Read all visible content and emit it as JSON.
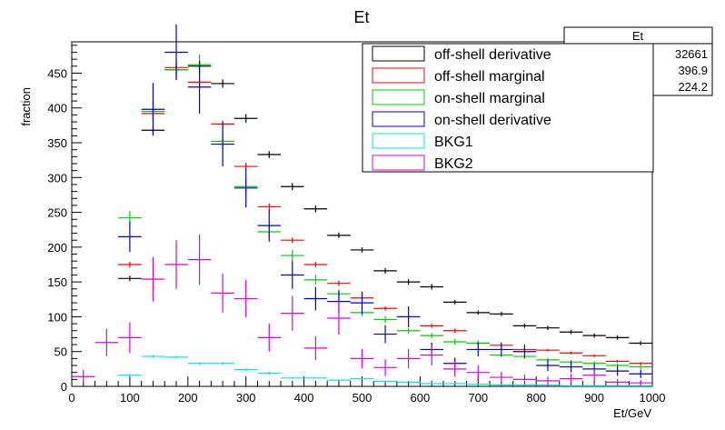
{
  "chart_data": {
    "type": "scatter",
    "title": "Et",
    "xlabel": "Et/GeV",
    "ylabel": "fraction",
    "xlim": [
      0,
      1000
    ],
    "ylim": [
      0,
      495
    ],
    "x_ticks": [
      0,
      100,
      200,
      300,
      400,
      500,
      600,
      700,
      800,
      900,
      1000
    ],
    "y_ticks": [
      0,
      50,
      100,
      150,
      200,
      250,
      300,
      350,
      400,
      450
    ],
    "bin_width": 40,
    "legend_position": "top-right",
    "stats_box": {
      "title": "Et",
      "values": [
        "32661",
        "396.9",
        "224.2"
      ]
    },
    "series": [
      {
        "name": "off-shell derivative",
        "color": "#000000",
        "x": [
          100,
          140,
          180,
          220,
          260,
          300,
          340,
          380,
          420,
          460,
          500,
          540,
          580,
          620,
          660,
          700,
          740,
          780,
          820,
          860,
          900,
          940,
          980
        ],
        "values": [
          155,
          368,
          455,
          460,
          435,
          385,
          333,
          287,
          255,
          217,
          196,
          166,
          150,
          143,
          121,
          106,
          104,
          87,
          84,
          78,
          73,
          70,
          62
        ],
        "errors": [
          4,
          6,
          7,
          7,
          6,
          6,
          5,
          5,
          5,
          4,
          4,
          4,
          4,
          4,
          3,
          3,
          3,
          3,
          3,
          3,
          3,
          3,
          3
        ]
      },
      {
        "name": "off-shell marginal",
        "color": "#ff0000",
        "x": [
          100,
          140,
          180,
          220,
          260,
          300,
          340,
          380,
          420,
          460,
          500,
          540,
          580,
          620,
          660,
          700,
          740,
          780,
          820,
          860,
          900,
          940,
          980
        ],
        "values": [
          175,
          392,
          458,
          437,
          377,
          316,
          258,
          210,
          175,
          148,
          127,
          112,
          100,
          87,
          80,
          62,
          59,
          53,
          52,
          48,
          44,
          36,
          33
        ],
        "errors": [
          4,
          5,
          6,
          6,
          5,
          5,
          5,
          4,
          4,
          4,
          4,
          3,
          3,
          3,
          3,
          3,
          3,
          2,
          2,
          2,
          2,
          2,
          2
        ]
      },
      {
        "name": "on-shell marginal",
        "color": "#00cc00",
        "x": [
          100,
          140,
          180,
          220,
          260,
          300,
          340,
          380,
          420,
          460,
          500,
          540,
          580,
          620,
          660,
          700,
          740,
          780,
          820,
          860,
          900,
          940,
          980
        ],
        "values": [
          242,
          395,
          455,
          462,
          352,
          287,
          222,
          188,
          153,
          133,
          106,
          96,
          80,
          73,
          64,
          62,
          45,
          43,
          38,
          35,
          33,
          30,
          28
        ],
        "errors": [
          10,
          14,
          15,
          15,
          12,
          10,
          8,
          8,
          7,
          6,
          5,
          5,
          4,
          4,
          4,
          4,
          3,
          3,
          3,
          3,
          3,
          3,
          3
        ]
      },
      {
        "name": "on-shell derivative",
        "color": "#0000cc",
        "x": [
          100,
          140,
          180,
          220,
          260,
          300,
          340,
          380,
          420,
          460,
          500,
          540,
          580,
          620,
          660,
          700,
          740,
          780,
          820,
          860,
          900,
          940,
          980
        ],
        "values": [
          215,
          398,
          480,
          430,
          348,
          285,
          231,
          160,
          126,
          122,
          120,
          75,
          100,
          53,
          33,
          53,
          53,
          50,
          30,
          28,
          25,
          22,
          18
        ],
        "errors": [
          22,
          38,
          40,
          38,
          32,
          28,
          23,
          20,
          17,
          16,
          16,
          13,
          15,
          10,
          8,
          10,
          10,
          10,
          8,
          8,
          7,
          7,
          6
        ]
      },
      {
        "name": "BKG1",
        "color": "#00e5e5",
        "x": [
          100,
          140,
          180,
          220,
          260,
          300,
          340,
          380,
          420,
          460,
          500,
          540,
          580,
          620,
          660,
          700,
          740,
          780,
          820,
          860,
          900,
          940,
          980
        ],
        "values": [
          16,
          43,
          42,
          33,
          33,
          24,
          19,
          12,
          12,
          9,
          11,
          7,
          6,
          4,
          4,
          3,
          2,
          2,
          2,
          1,
          1,
          1,
          1
        ],
        "errors": [
          2,
          2,
          2,
          2,
          2,
          2,
          2,
          1,
          1,
          1,
          1,
          1,
          1,
          1,
          1,
          1,
          1,
          1,
          1,
          1,
          1,
          1,
          1
        ]
      },
      {
        "name": "BKG2",
        "color": "#dd00dd",
        "x": [
          20,
          60,
          100,
          140,
          180,
          220,
          260,
          300,
          340,
          380,
          420,
          460,
          500,
          540,
          580,
          620,
          660,
          700,
          740,
          780,
          820,
          860,
          900,
          940,
          980
        ],
        "values": [
          14,
          63,
          70,
          154,
          175,
          182,
          134,
          126,
          70,
          105,
          55,
          98,
          40,
          27,
          40,
          45,
          25,
          20,
          13,
          10,
          8,
          11,
          16,
          6,
          5
        ],
        "errors": [
          10,
          20,
          22,
          32,
          35,
          36,
          28,
          27,
          20,
          25,
          17,
          24,
          14,
          12,
          14,
          15,
          11,
          10,
          8,
          7,
          6,
          7,
          9,
          5,
          4
        ]
      }
    ]
  }
}
